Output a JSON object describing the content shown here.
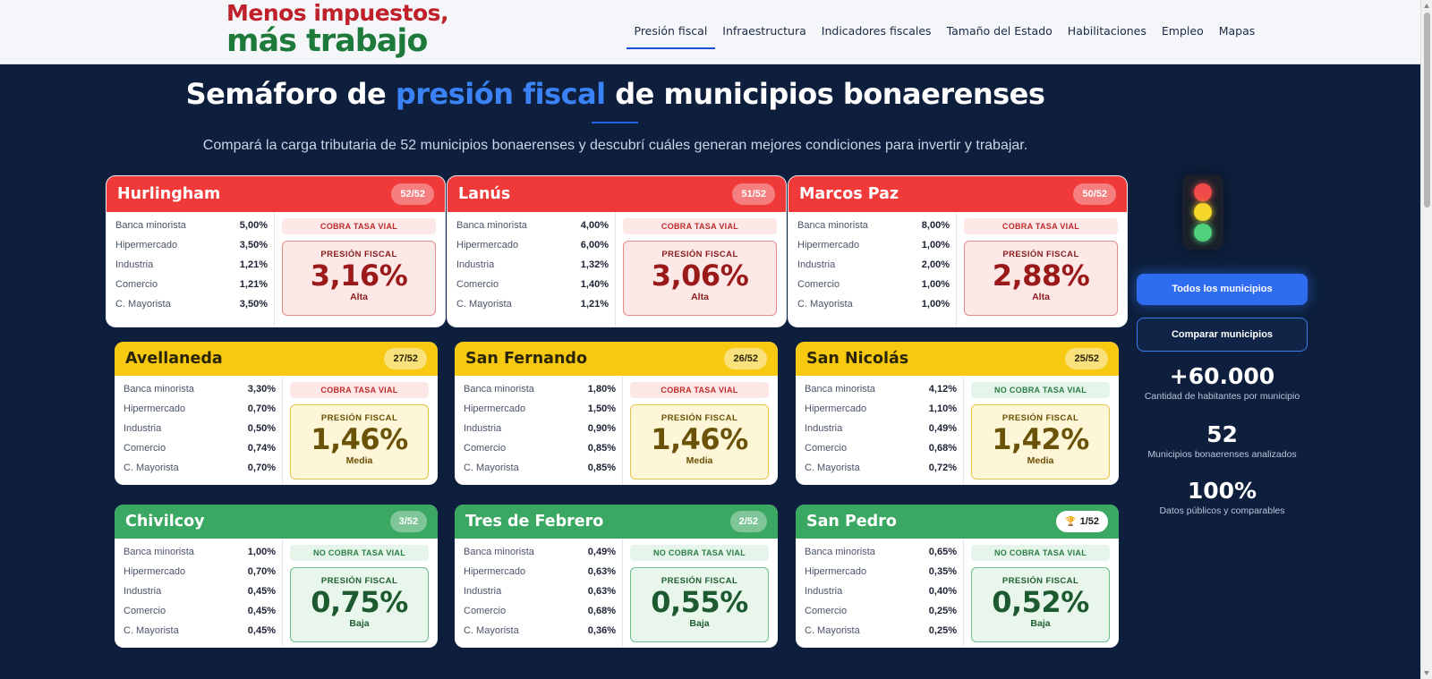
{
  "logo": {
    "line1": "Menos impuestos,",
    "line2": "más trabajo"
  },
  "nav": [
    "Presión fiscal",
    "Infraestructura",
    "Indicadores fiscales",
    "Tamaño del Estado",
    "Habilitaciones",
    "Empleo",
    "Mapas"
  ],
  "hero": {
    "title_pre": "Semáforo de ",
    "title_hl": "presión fiscal",
    "title_post": " de municipios bonaerenses",
    "subtitle": "Compará la carga tributaria de 52 municipios bonaerenses y descubrí cuáles generan mejores condiciones para invertir y trabajar."
  },
  "rate_labels": [
    "Banca minorista",
    "Hipermercado",
    "Industria",
    "Comercio",
    "C. Mayorista"
  ],
  "pressure_label": "PRESIÓN FISCAL",
  "colors": {
    "red": "#f03a3a",
    "yellow": "#f7c911",
    "green": "#3aa862",
    "accent": "#3b82f6",
    "background": "#0d1f3c"
  },
  "cards": [
    {
      "name": "Hurlingham",
      "rank": "52/52",
      "rates": [
        "5,00%",
        "3,50%",
        "1,21%",
        "1,21%",
        "3,50%"
      ],
      "vial": "COBRA TASA VIAL",
      "pressure": "3,16%",
      "level": "Alta",
      "tone": "red"
    },
    {
      "name": "Lanús",
      "rank": "51/52",
      "rates": [
        "4,00%",
        "6,00%",
        "1,32%",
        "1,40%",
        "1,21%"
      ],
      "vial": "COBRA TASA VIAL",
      "pressure": "3,06%",
      "level": "Alta",
      "tone": "red"
    },
    {
      "name": "Marcos Paz",
      "rank": "50/52",
      "rates": [
        "8,00%",
        "1,00%",
        "2,00%",
        "1,00%",
        "1,00%"
      ],
      "vial": "COBRA TASA VIAL",
      "pressure": "2,88%",
      "level": "Alta",
      "tone": "red"
    },
    {
      "name": "Avellaneda",
      "rank": "27/52",
      "rates": [
        "3,30%",
        "0,70%",
        "0,50%",
        "0,74%",
        "0,70%"
      ],
      "vial": "COBRA TASA VIAL",
      "pressure": "1,46%",
      "level": "Media",
      "tone": "yellow"
    },
    {
      "name": "San Fernando",
      "rank": "26/52",
      "rates": [
        "1,80%",
        "1,50%",
        "0,90%",
        "0,85%",
        "0,85%"
      ],
      "vial": "COBRA TASA VIAL",
      "pressure": "1,46%",
      "level": "Media",
      "tone": "yellow"
    },
    {
      "name": "San Nicolás",
      "rank": "25/52",
      "rates": [
        "4,12%",
        "1,10%",
        "0,49%",
        "0,68%",
        "0,72%"
      ],
      "vial": "NO COBRA TASA VIAL",
      "pressure": "1,42%",
      "level": "Media",
      "tone": "yellow"
    },
    {
      "name": "Chivilcoy",
      "rank": "3/52",
      "rates": [
        "1,00%",
        "0,70%",
        "0,45%",
        "0,45%",
        "0,45%"
      ],
      "vial": "NO COBRA TASA VIAL",
      "pressure": "0,75%",
      "level": "Baja",
      "tone": "green"
    },
    {
      "name": "Tres de Febrero",
      "rank": "2/52",
      "rates": [
        "0,49%",
        "0,63%",
        "0,63%",
        "0,68%",
        "0,36%"
      ],
      "vial": "NO COBRA TASA VIAL",
      "pressure": "0,55%",
      "level": "Baja",
      "tone": "green"
    },
    {
      "name": "San Pedro",
      "rank": "1/52",
      "rates": [
        "0,65%",
        "0,35%",
        "0,40%",
        "0,25%",
        "0,25%"
      ],
      "vial": "NO COBRA TASA VIAL",
      "pressure": "0,52%",
      "level": "Baja",
      "tone": "green",
      "trophy_icon": "trophy-icon"
    }
  ],
  "side": {
    "btn_all": "Todos los municipios",
    "btn_compare": "Comparar municipios",
    "stats": [
      {
        "num": "+60.000",
        "label": "Cantidad de habitantes por municipio"
      },
      {
        "num": "52",
        "label": "Municipios bonaerenses analizados"
      },
      {
        "num": "100%",
        "label": "Datos públicos y comparables"
      }
    ]
  }
}
